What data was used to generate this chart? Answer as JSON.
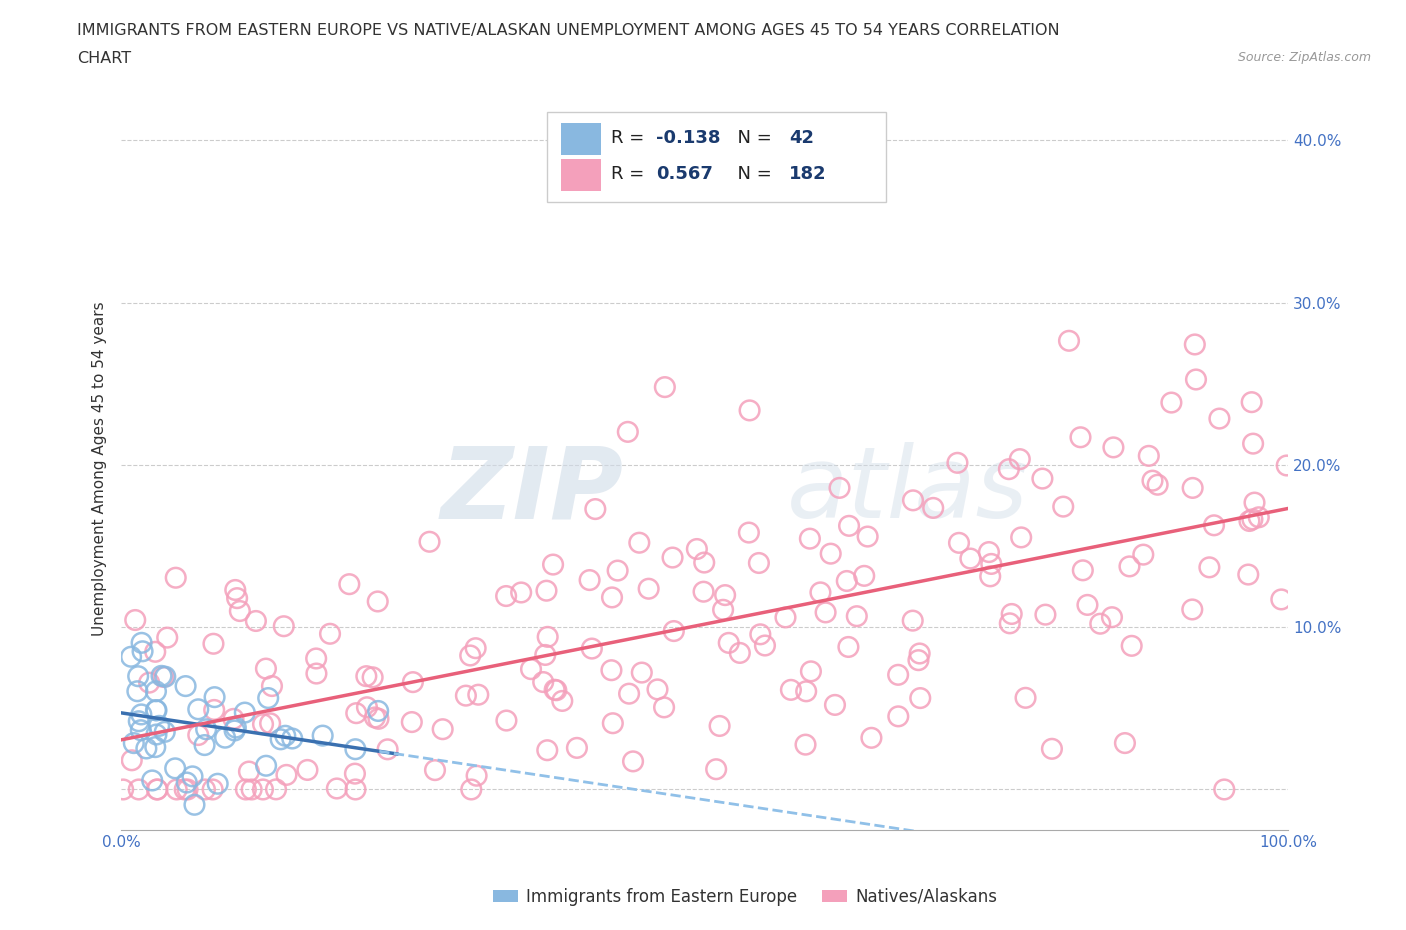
{
  "title_line1": "IMMIGRANTS FROM EASTERN EUROPE VS NATIVE/ALASKAN UNEMPLOYMENT AMONG AGES 45 TO 54 YEARS CORRELATION",
  "title_line2": "CHART",
  "source": "Source: ZipAtlas.com",
  "ylabel": "Unemployment Among Ages 45 to 54 years",
  "xmin": 0.0,
  "xmax": 1.0,
  "ymin": -0.025,
  "ymax": 0.42,
  "x_ticks": [
    0.0,
    0.1,
    0.2,
    0.3,
    0.4,
    0.5,
    0.6,
    0.7,
    0.8,
    0.9,
    1.0
  ],
  "x_tick_labels": [
    "0.0%",
    "",
    "",
    "",
    "",
    "",
    "",
    "",
    "",
    "",
    "100.0%"
  ],
  "y_ticks": [
    0.0,
    0.1,
    0.2,
    0.3,
    0.4
  ],
  "y_tick_labels": [
    "",
    "10.0%",
    "20.0%",
    "30.0%",
    "40.0%"
  ],
  "blue_color": "#89b8e0",
  "pink_color": "#f4a0bb",
  "blue_line_color": "#3a70b0",
  "pink_line_color": "#e8607a",
  "blue_dash_color": "#90c0e8",
  "grid_color": "#cccccc",
  "R_blue": -0.138,
  "N_blue": 42,
  "R_pink": 0.567,
  "N_pink": 182,
  "blue_seed": 99,
  "pink_seed": 15,
  "background_color": "#ffffff",
  "legend_label_blue": "Immigrants from Eastern Europe",
  "legend_label_pink": "Natives/Alaskans",
  "tick_color": "#4472c4",
  "text_color": "#333333"
}
